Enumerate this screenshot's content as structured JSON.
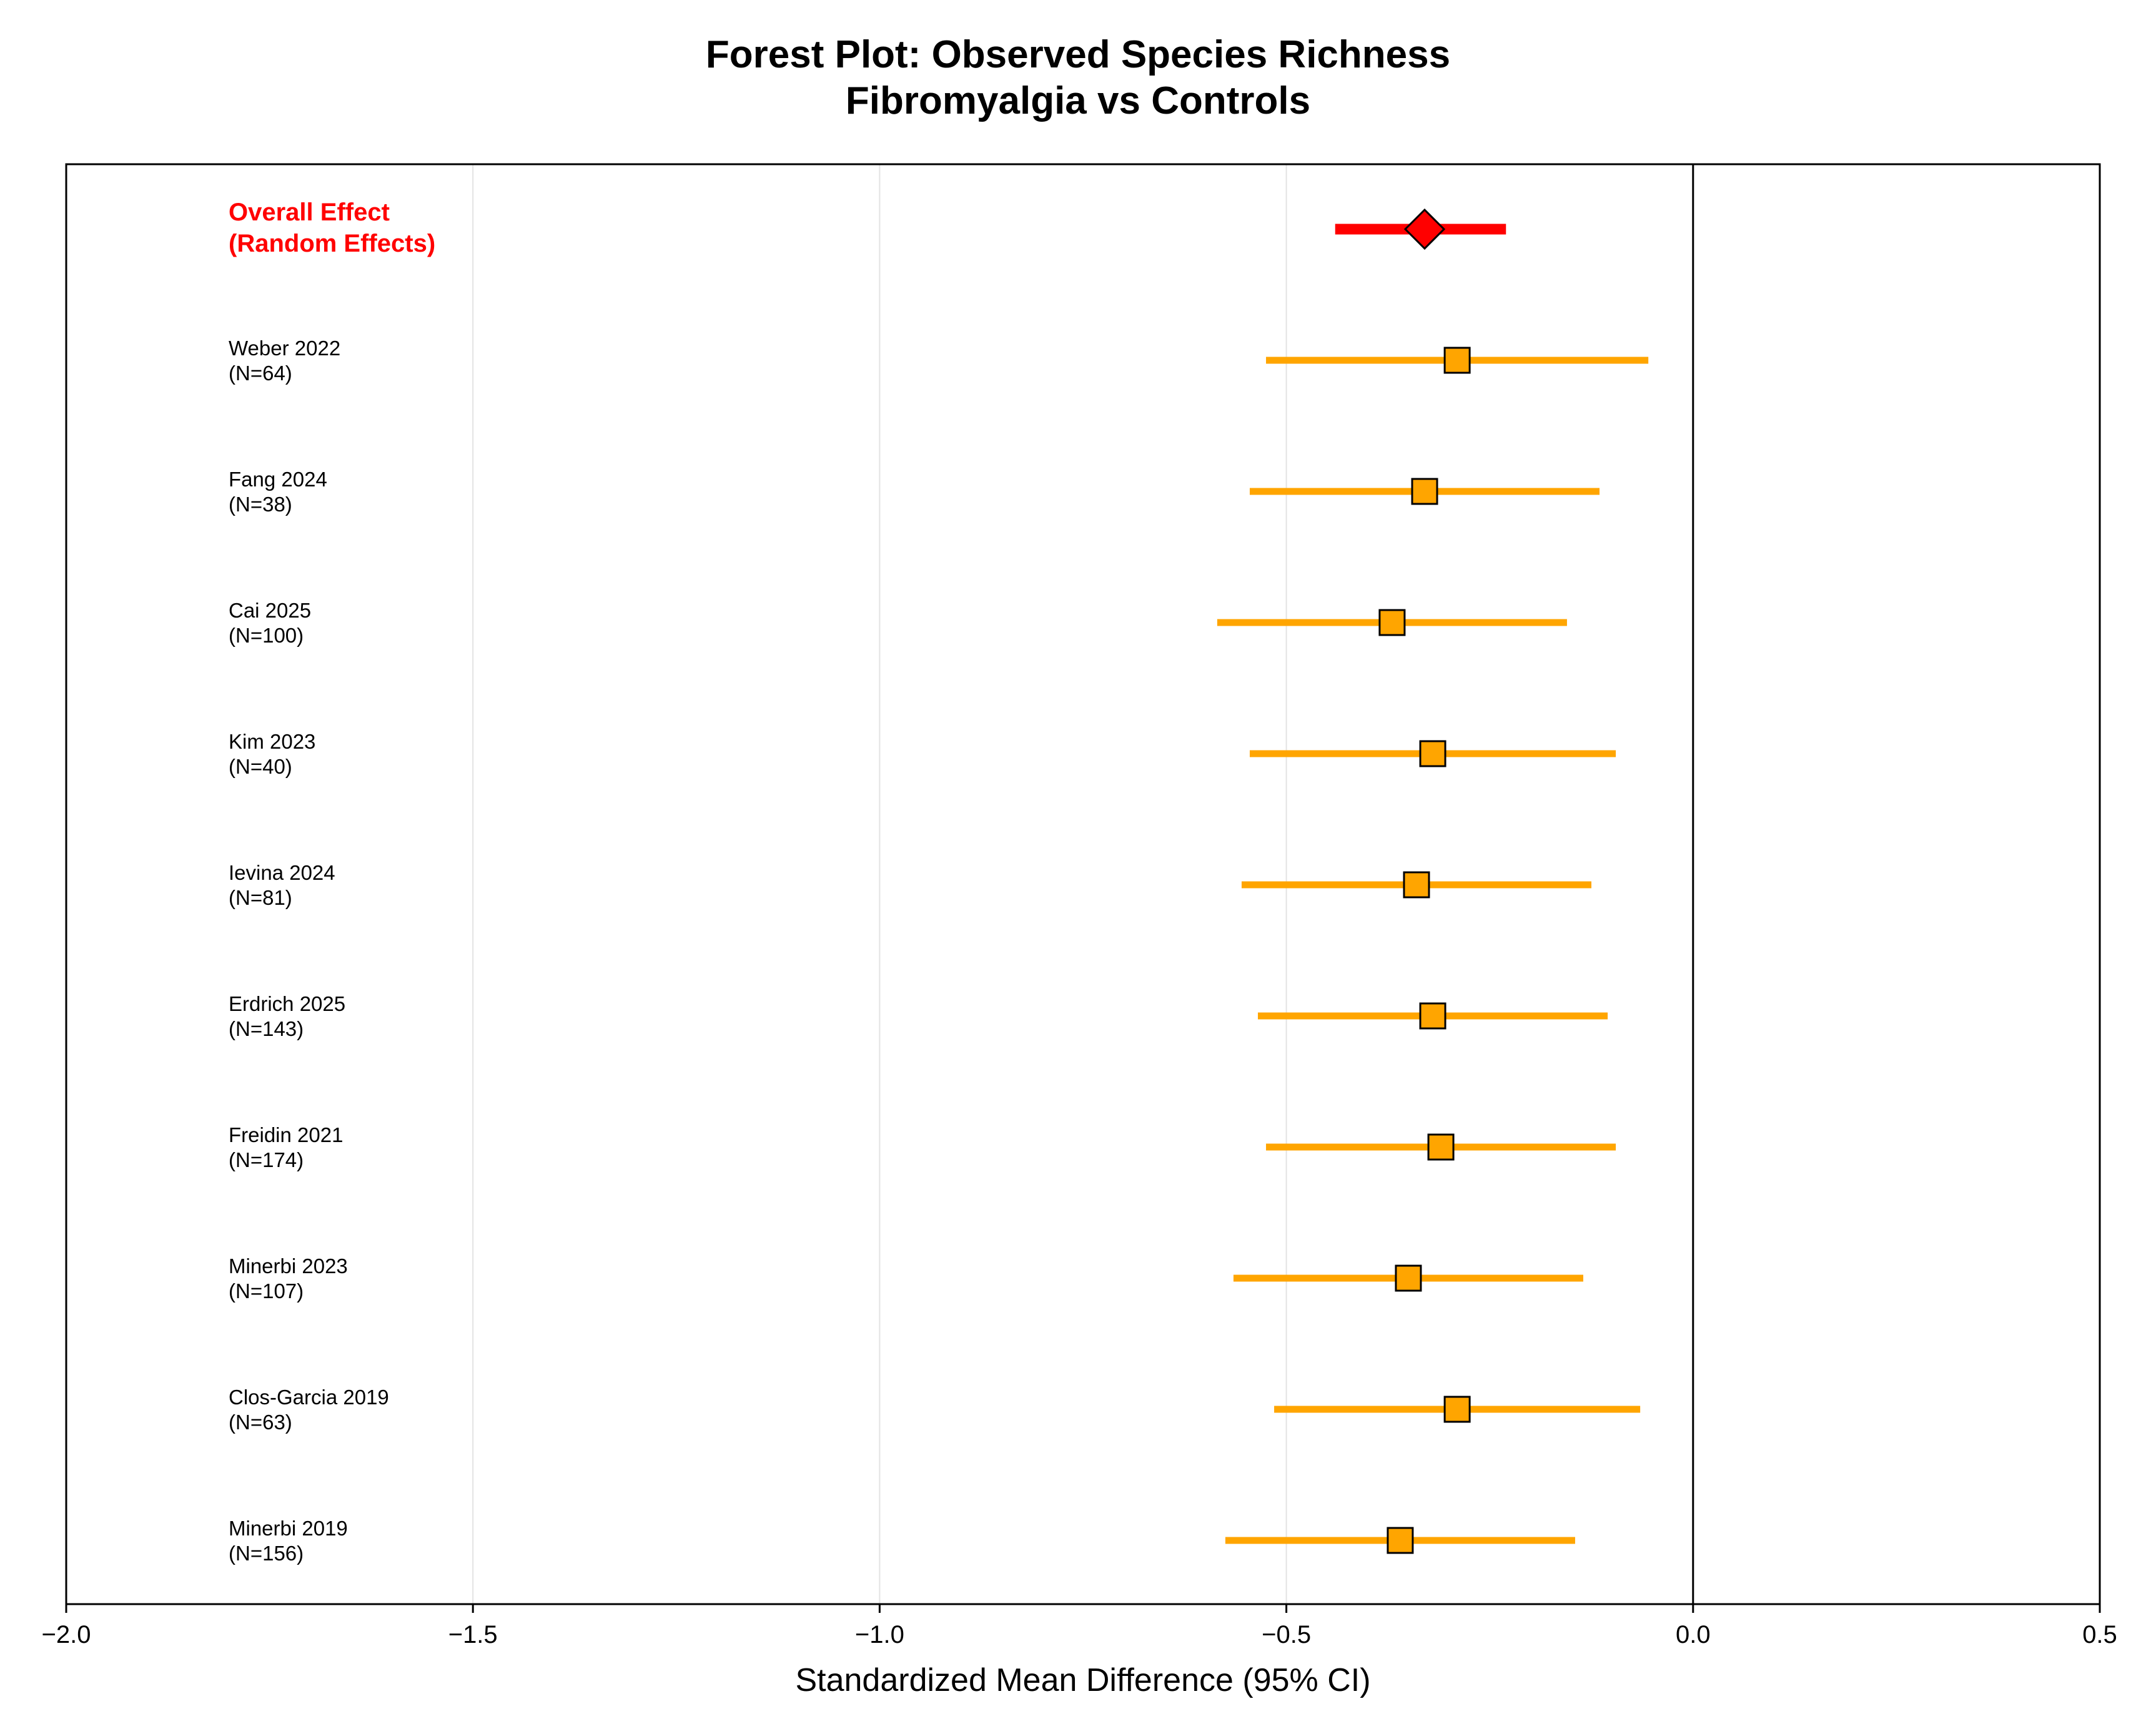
{
  "chart_data": {
    "type": "forest",
    "title": [
      "Forest Plot: Observed Species Richness",
      "Fibromyalgia vs Controls"
    ],
    "xlabel": "Standardized Mean Difference (95% CI)",
    "xlim": [
      -2.0,
      0.5
    ],
    "xticks": [
      -2.0,
      -1.5,
      -1.0,
      -0.5,
      0.0,
      0.5
    ],
    "xtick_labels": [
      "−2.0",
      "−1.5",
      "−1.0",
      "−0.5",
      "0.0",
      "0.5"
    ],
    "grid": "vertical at major ticks",
    "reference_line": 0.0,
    "overall": {
      "label": [
        "Overall Effect",
        "(Random Effects)"
      ],
      "estimate": -0.33,
      "ci": [
        -0.44,
        -0.23
      ],
      "color": "#ff0000"
    },
    "studies": [
      {
        "name": "Weber 2022",
        "n": "(N=64)",
        "estimate": -0.29,
        "ci": [
          -0.525,
          -0.055
        ]
      },
      {
        "name": "Fang 2024",
        "n": "(N=38)",
        "estimate": -0.33,
        "ci": [
          -0.545,
          -0.115
        ]
      },
      {
        "name": "Cai 2025",
        "n": "(N=100)",
        "estimate": -0.37,
        "ci": [
          -0.585,
          -0.155
        ]
      },
      {
        "name": "Kim 2023",
        "n": "(N=40)",
        "estimate": -0.32,
        "ci": [
          -0.545,
          -0.095
        ]
      },
      {
        "name": "Ievina 2024",
        "n": "(N=81)",
        "estimate": -0.34,
        "ci": [
          -0.555,
          -0.125
        ]
      },
      {
        "name": "Erdrich 2025",
        "n": "(N=143)",
        "estimate": -0.32,
        "ci": [
          -0.535,
          -0.105
        ]
      },
      {
        "name": "Freidin 2021",
        "n": "(N=174)",
        "estimate": -0.31,
        "ci": [
          -0.525,
          -0.095
        ]
      },
      {
        "name": "Minerbi 2023",
        "n": "(N=107)",
        "estimate": -0.35,
        "ci": [
          -0.565,
          -0.135
        ]
      },
      {
        "name": "Clos-Garcia 2019",
        "n": "(N=63)",
        "estimate": -0.29,
        "ci": [
          -0.515,
          -0.065
        ]
      },
      {
        "name": "Minerbi 2019",
        "n": "(N=156)",
        "estimate": -0.36,
        "ci": [
          -0.575,
          -0.145
        ]
      }
    ],
    "study_color": "#ffa500",
    "marker_edge_color": "#000000"
  }
}
